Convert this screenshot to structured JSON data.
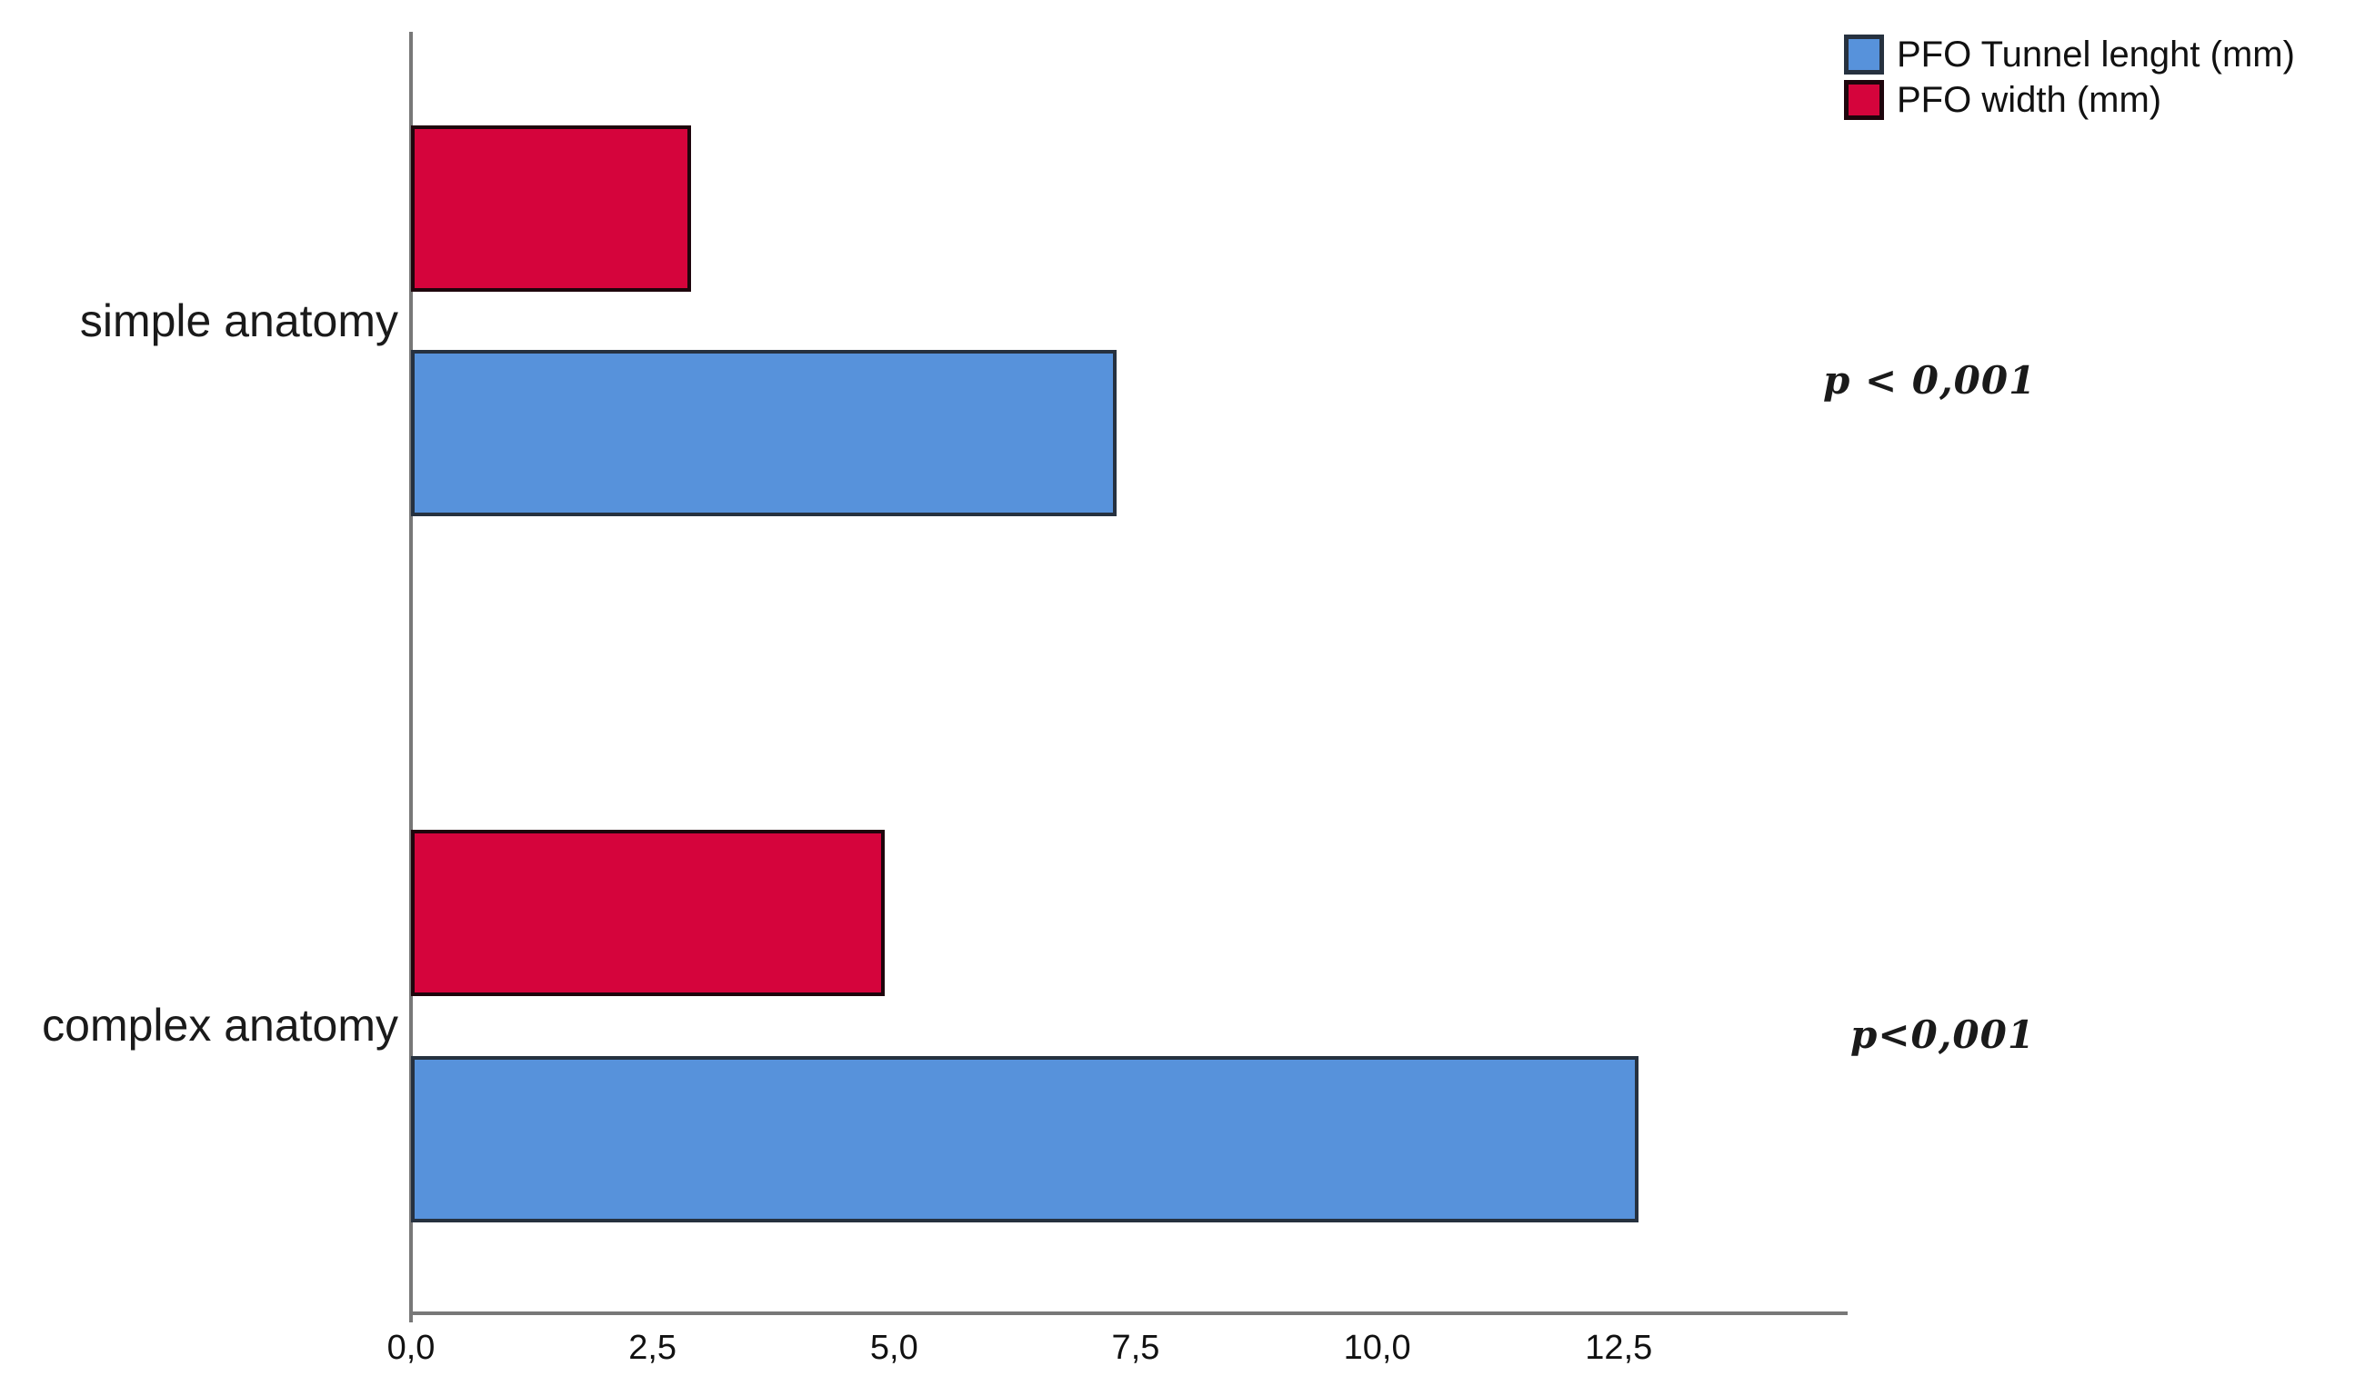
{
  "chart_data": {
    "type": "bar",
    "orientation": "horizontal",
    "title": "",
    "categories": [
      "simple anatomy",
      "complex anatomy"
    ],
    "series": [
      {
        "name": "PFO Tunnel lenght (mm)",
        "color": "#5792DB",
        "border_color": "#26313F",
        "values": [
          7.3,
          12.7
        ]
      },
      {
        "name": "PFO width (mm)",
        "color": "#D5043C",
        "border_color": "#1E050C",
        "values": [
          2.9,
          4.9
        ]
      }
    ],
    "x_axis": {
      "tick_values": [
        0,
        2.5,
        5,
        7.5,
        10,
        12.5
      ],
      "tick_labels": [
        "0,0",
        "2,5",
        "5,0",
        "7,5",
        "10,0",
        "12,5"
      ],
      "xlim": [
        0,
        14.85
      ],
      "decimal_separator": ","
    },
    "annotations": [
      {
        "text": "p < 0,001",
        "category": "simple anatomy"
      },
      {
        "text": "p<0,001",
        "category": "complex anatomy"
      }
    ],
    "legend": {
      "position": "top-right"
    },
    "axis_color": "#787878",
    "grid": false
  }
}
